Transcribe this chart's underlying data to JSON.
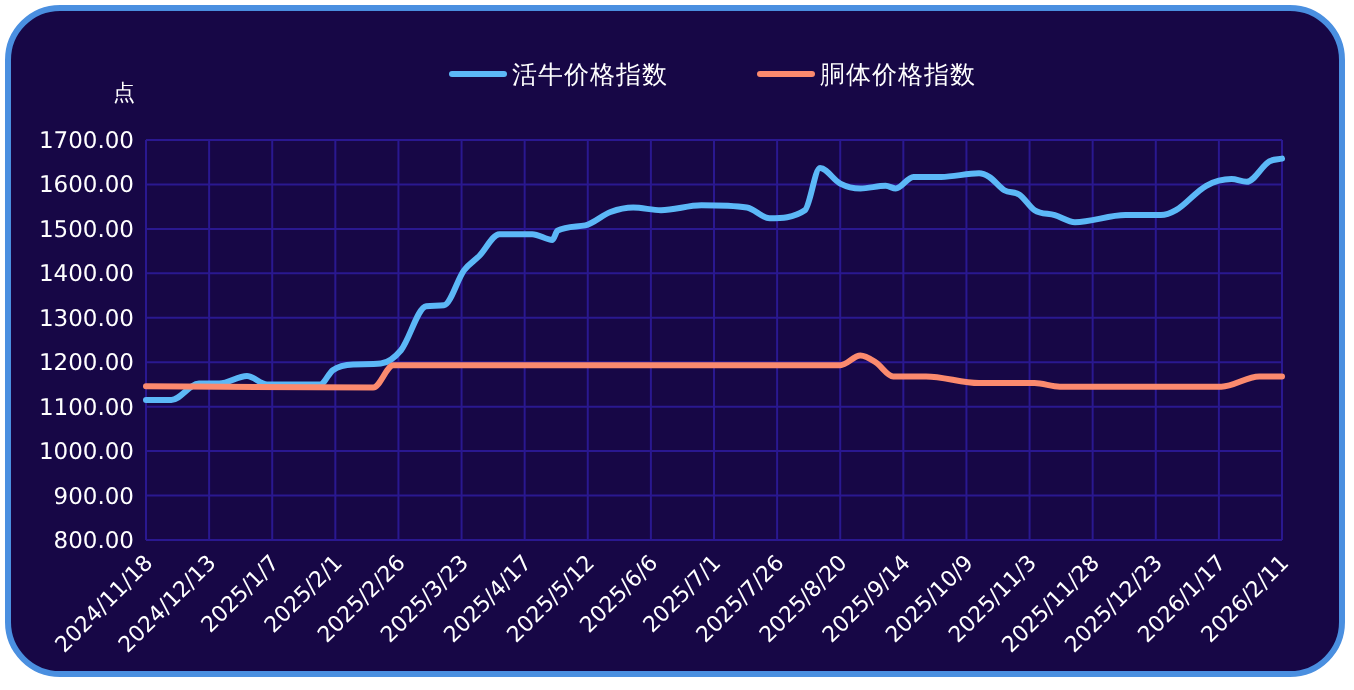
{
  "chart_data": {
    "type": "line",
    "ylabel": "点",
    "x": [
      "2024-11-18",
      "2024-11-28",
      "2024-12-09",
      "2024-12-17",
      "2024-12-28",
      "2025-01-05",
      "2025-01-26",
      "2025-01-31",
      "2025-02-08",
      "2025-02-19",
      "2025-02-27",
      "2025-03-09",
      "2025-03-16",
      "2025-03-24",
      "2025-03-30",
      "2025-04-07",
      "2025-04-20",
      "2025-04-28",
      "2025-04-30",
      "2025-05-11",
      "2025-05-21",
      "2025-05-30",
      "2025-06-10",
      "2025-06-26",
      "2025-07-14",
      "2025-07-23",
      "2025-08-06",
      "2025-08-12",
      "2025-08-20",
      "2025-08-28",
      "2025-09-07",
      "2025-09-11",
      "2025-09-18",
      "2025-09-29",
      "2025-10-14",
      "2025-10-18",
      "2025-10-24",
      "2025-10-30",
      "2025-11-05",
      "2025-11-13",
      "2025-11-21",
      "2025-12-11",
      "2025-12-25",
      "2025-12-31",
      "2026-01-12",
      "2026-01-22",
      "2026-01-28",
      "2026-02-06",
      "2026-02-11"
    ],
    "series": [
      {
        "name": "活牛价格指数",
        "color": "#5cb8f7",
        "values": [
          1115,
          1115,
          1152,
          1152,
          1169,
          1150,
          1150,
          1182,
          1195,
          1197,
          1227,
          1326,
          1328,
          1407,
          1439,
          1488,
          1488,
          1475,
          1496,
          1508,
          1538,
          1548,
          1542,
          1553,
          1548,
          1524,
          1542,
          1637,
          1602,
          1591,
          1597,
          1591,
          1617,
          1617,
          1625,
          1617,
          1587,
          1577,
          1542,
          1531,
          1515,
          1531,
          1531,
          1542,
          1597,
          1612,
          1606,
          1652,
          1658
        ]
      },
      {
        "name": "胴体价格指数",
        "color": "#fb8a6e",
        "x": [
          "2024-11-18",
          "2025-02-16",
          "2025-02-24",
          "2025-08-20",
          "2025-08-28",
          "2025-09-03",
          "2025-09-10",
          "2025-09-23",
          "2025-10-14",
          "2025-11-05",
          "2025-11-15",
          "2026-01-18",
          "2026-02-02",
          "2026-02-11"
        ],
        "values": [
          1146,
          1143,
          1193,
          1193,
          1215,
          1200,
          1168,
          1168,
          1153,
          1153,
          1145,
          1145,
          1168,
          1168
        ]
      }
    ],
    "xlim": [
      "2024-11-18",
      "2026-02-11"
    ],
    "xticks": [
      {
        "value": "2024-11-18",
        "label": "2024/11/18"
      },
      {
        "value": "2024-12-13",
        "label": "2024/12/13"
      },
      {
        "value": "2025-01-07",
        "label": "2025/1/7"
      },
      {
        "value": "2025-02-01",
        "label": "2025/2/1"
      },
      {
        "value": "2025-02-26",
        "label": "2025/2/26"
      },
      {
        "value": "2025-03-23",
        "label": "2025/3/23"
      },
      {
        "value": "2025-04-17",
        "label": "2025/4/17"
      },
      {
        "value": "2025-05-12",
        "label": "2025/5/12"
      },
      {
        "value": "2025-06-06",
        "label": "2025/6/6"
      },
      {
        "value": "2025-07-01",
        "label": "2025/7/1"
      },
      {
        "value": "2025-07-26",
        "label": "2025/7/26"
      },
      {
        "value": "2025-08-20",
        "label": "2025/8/20"
      },
      {
        "value": "2025-09-14",
        "label": "2025/9/14"
      },
      {
        "value": "2025-10-09",
        "label": "2025/10/9"
      },
      {
        "value": "2025-11-03",
        "label": "2025/11/3"
      },
      {
        "value": "2025-11-28",
        "label": "2025/11/28"
      },
      {
        "value": "2025-12-23",
        "label": "2025/12/23"
      },
      {
        "value": "2026-01-17",
        "label": "2026/1/17"
      },
      {
        "value": "2026-02-11",
        "label": "2026/2/11"
      }
    ],
    "ylim": [
      800,
      1700
    ],
    "yticks": [
      {
        "value": 800,
        "label": "800.00"
      },
      {
        "value": 900,
        "label": "900.00"
      },
      {
        "value": 1000,
        "label": "1000.00"
      },
      {
        "value": 1100,
        "label": "1100.00"
      },
      {
        "value": 1200,
        "label": "1200.00"
      },
      {
        "value": 1300,
        "label": "1300.00"
      },
      {
        "value": 1400,
        "label": "1400.00"
      },
      {
        "value": 1500,
        "label": "1500.00"
      },
      {
        "value": 1600,
        "label": "1600.00"
      },
      {
        "value": 1700,
        "label": "1700.00"
      }
    ],
    "grid": true,
    "legend": "top",
    "marker": "none",
    "line_style": "solid"
  }
}
